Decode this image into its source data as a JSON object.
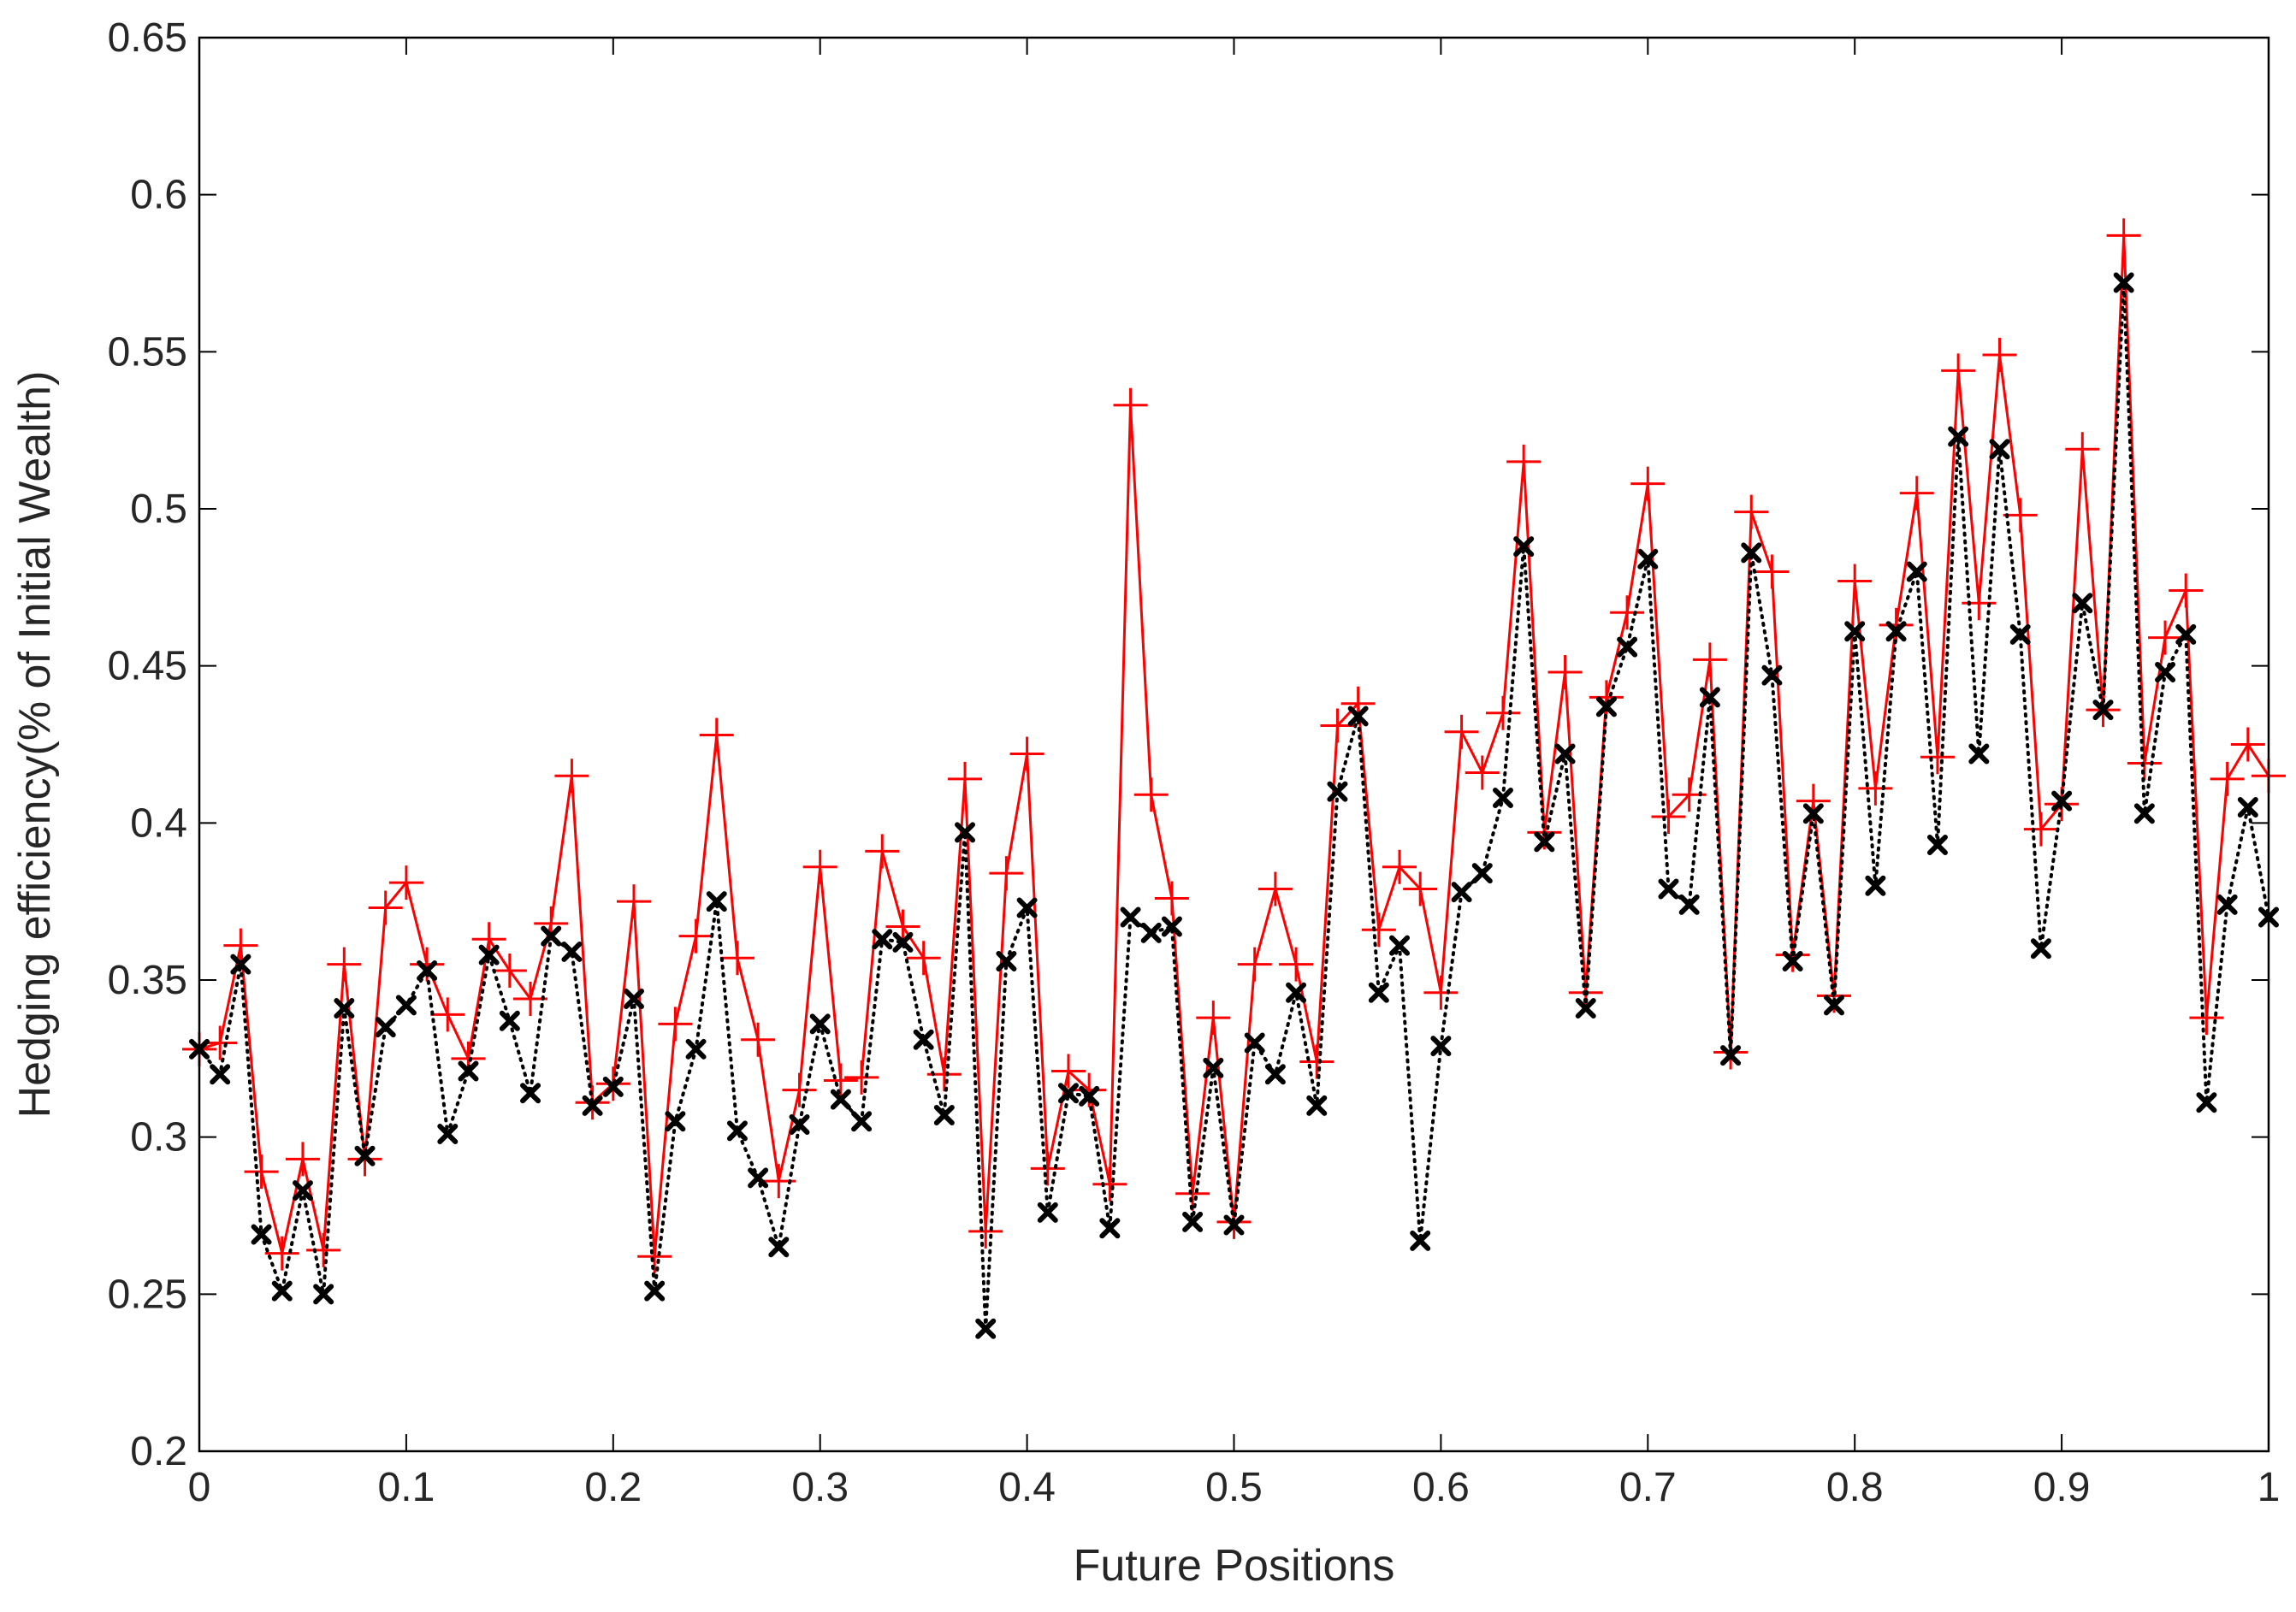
{
  "chart_data": {
    "type": "line",
    "xlabel": "Future Positions",
    "ylabel": "Hedging efficiency(% of Initial Wealth)",
    "xlim": [
      0,
      1
    ],
    "ylim": [
      0.2,
      0.65
    ],
    "xticks": [
      "0",
      "0.1",
      "0.2",
      "0.3",
      "0.4",
      "0.5",
      "0.6",
      "0.7",
      "0.8",
      "0.9",
      "1"
    ],
    "yticks": [
      "0.2",
      "0.25",
      "0.3",
      "0.35",
      "0.4",
      "0.45",
      "0.5",
      "0.55",
      "0.6",
      "0.65"
    ],
    "x": [
      0.0,
      0.01,
      0.02,
      0.03,
      0.04,
      0.05,
      0.06,
      0.07,
      0.08,
      0.09,
      0.1,
      0.11,
      0.12,
      0.13,
      0.14,
      0.15,
      0.16,
      0.17,
      0.18,
      0.19,
      0.2,
      0.21,
      0.22,
      0.23,
      0.24,
      0.25,
      0.26,
      0.27,
      0.28,
      0.29,
      0.3,
      0.31,
      0.32,
      0.33,
      0.34,
      0.35,
      0.36,
      0.37,
      0.38,
      0.39,
      0.4,
      0.41,
      0.42,
      0.43,
      0.44,
      0.45,
      0.46,
      0.47,
      0.48,
      0.49,
      0.5,
      0.51,
      0.52,
      0.53,
      0.54,
      0.55,
      0.56,
      0.57,
      0.58,
      0.59,
      0.6,
      0.61,
      0.62,
      0.63,
      0.64,
      0.65,
      0.66,
      0.67,
      0.68,
      0.69,
      0.7,
      0.71,
      0.72,
      0.73,
      0.74,
      0.75,
      0.76,
      0.77,
      0.78,
      0.79,
      0.8,
      0.81,
      0.82,
      0.83,
      0.84,
      0.85,
      0.86,
      0.87,
      0.88,
      0.89,
      0.9,
      0.91,
      0.92,
      0.93,
      0.94,
      0.95,
      0.96,
      0.97,
      0.98,
      0.99,
      1.0
    ],
    "series": [
      {
        "color": "#ff0000",
        "marker": "plus",
        "linestyle": "solid",
        "values": [
          0.328,
          0.33,
          0.361,
          0.289,
          0.263,
          0.293,
          0.264,
          0.355,
          0.293,
          0.373,
          0.381,
          0.355,
          0.339,
          0.325,
          0.363,
          0.353,
          0.344,
          0.368,
          0.415,
          0.311,
          0.317,
          0.375,
          0.262,
          0.336,
          0.364,
          0.428,
          0.357,
          0.331,
          0.286,
          0.315,
          0.386,
          0.318,
          0.319,
          0.391,
          0.367,
          0.357,
          0.32,
          0.414,
          0.27,
          0.384,
          0.422,
          0.29,
          0.321,
          0.315,
          0.285,
          0.533,
          0.409,
          0.376,
          0.282,
          0.338,
          0.273,
          0.355,
          0.379,
          0.355,
          0.324,
          0.431,
          0.438,
          0.366,
          0.386,
          0.379,
          0.346,
          0.429,
          0.416,
          0.435,
          0.515,
          0.397,
          0.448,
          0.346,
          0.44,
          0.467,
          0.508,
          0.402,
          0.409,
          0.452,
          0.327,
          0.499,
          0.48,
          0.358,
          0.407,
          0.345,
          0.477,
          0.411,
          0.463,
          0.505,
          0.421,
          0.544,
          0.47,
          0.549,
          0.498,
          0.398,
          0.406,
          0.519,
          0.436,
          0.587,
          0.419,
          0.459,
          0.474,
          0.338,
          0.414,
          0.425,
          0.415
        ]
      },
      {
        "color": "#000000",
        "marker": "x",
        "linestyle": "dotted",
        "values": [
          0.328,
          0.32,
          0.355,
          0.269,
          0.251,
          0.283,
          0.25,
          0.341,
          0.294,
          0.335,
          0.342,
          0.353,
          0.301,
          0.321,
          0.358,
          0.337,
          0.314,
          0.364,
          0.359,
          0.31,
          0.316,
          0.344,
          0.251,
          0.305,
          0.328,
          0.375,
          0.302,
          0.287,
          0.265,
          0.304,
          0.336,
          0.312,
          0.305,
          0.363,
          0.362,
          0.331,
          0.307,
          0.397,
          0.239,
          0.356,
          0.373,
          0.276,
          0.314,
          0.313,
          0.271,
          0.37,
          0.365,
          0.367,
          0.273,
          0.322,
          0.272,
          0.33,
          0.32,
          0.346,
          0.31,
          0.41,
          0.434,
          0.346,
          0.361,
          0.267,
          0.329,
          0.378,
          0.384,
          0.408,
          0.488,
          0.394,
          0.422,
          0.341,
          0.437,
          0.456,
          0.484,
          0.379,
          0.374,
          0.44,
          0.326,
          0.486,
          0.447,
          0.356,
          0.403,
          0.342,
          0.461,
          0.38,
          0.461,
          0.48,
          0.393,
          0.523,
          0.422,
          0.519,
          0.46,
          0.36,
          0.407,
          0.47,
          0.436,
          0.572,
          0.403,
          0.448,
          0.46,
          0.311,
          0.374,
          0.405,
          0.37
        ]
      }
    ]
  }
}
